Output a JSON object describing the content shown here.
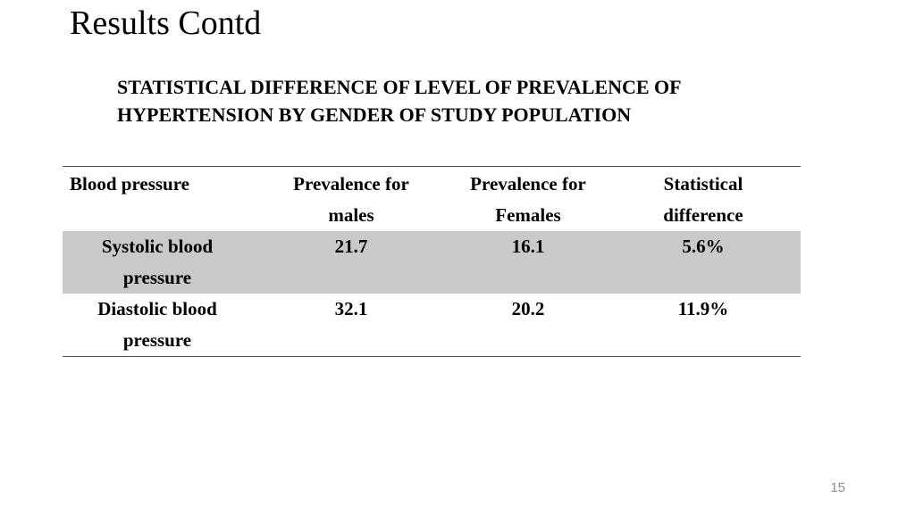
{
  "slide": {
    "title": "Results Contd",
    "subtitle_line1": "STATISTICAL DIFFERENCE OF LEVEL OF PREVALENCE OF",
    "subtitle_line2": "HYPERTENSION BY GENDER OF STUDY POPULATION",
    "page_number": "15"
  },
  "table": {
    "headers": [
      {
        "line1": "Blood pressure",
        "line2": ""
      },
      {
        "line1": "Prevalence for",
        "line2": "males"
      },
      {
        "line1": "Prevalence for",
        "line2": "Females"
      },
      {
        "line1": "Statistical",
        "line2": "difference"
      }
    ],
    "rows": [
      {
        "label_line1": "Systolic blood",
        "label_line2": "pressure",
        "males": "21.7",
        "females": "16.1",
        "difference": "5.6%",
        "shaded": true
      },
      {
        "label_line1": "Diastolic blood",
        "label_line2": "pressure",
        "males": "32.1",
        "females": "20.2",
        "difference": "11.9%",
        "shaded": false
      }
    ]
  },
  "colors": {
    "shaded_row": "#c9c9c9",
    "rule_line": "#555555",
    "page_number": "#8c8c8c"
  }
}
